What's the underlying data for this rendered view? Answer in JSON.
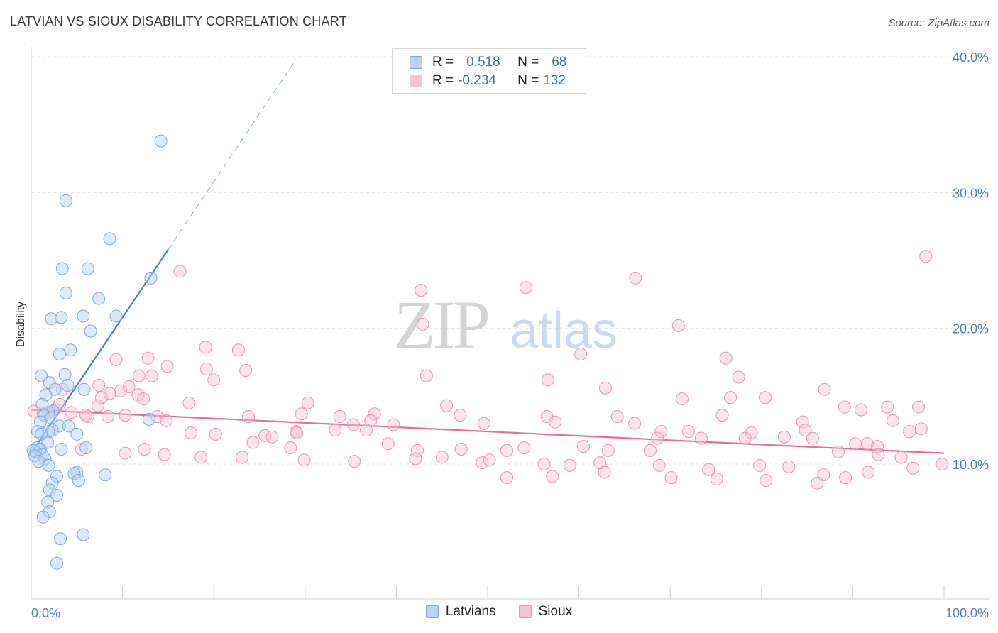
{
  "title": "LATVIAN VS SIOUX DISABILITY CORRELATION CHART",
  "source": "Source: ZipAtlas.com",
  "watermark": {
    "zip": "ZIP",
    "atlas": "atlas"
  },
  "legend": {
    "rows": [
      {
        "r_label": "R = ",
        "r_value": "0.518",
        "n_label": "N = ",
        "n_value": "68",
        "color": "#7aa7e0",
        "fill": "#b9d3f3"
      },
      {
        "r_label": "R = ",
        "r_value": "-0.234",
        "n_label": "N = ",
        "n_value": "132",
        "color": "#ee90ae",
        "fill": "#f8c4d4"
      }
    ]
  },
  "bottom_legend": [
    {
      "label": "Latvians",
      "color": "#7aa7e0",
      "fill": "#b9d3f3"
    },
    {
      "label": "Sioux",
      "color": "#ee90ae",
      "fill": "#f8c4d4"
    }
  ],
  "chart_data": {
    "type": "scatter",
    "title": "LATVIAN VS SIOUX DISABILITY CORRELATION CHART",
    "xlabel": "",
    "ylabel": "Disability",
    "xlim": [
      0,
      100
    ],
    "ylim": [
      0,
      42
    ],
    "x_tick_labels": [
      "0.0%",
      "100.0%"
    ],
    "y_ticks": [
      10,
      20,
      30,
      40
    ],
    "y_tick_labels": [
      "10.0%",
      "20.0%",
      "30.0%",
      "40.0%"
    ],
    "grid": true,
    "legend_position": "top-center",
    "series": [
      {
        "name": "Latvians",
        "color": "#3f7ed6",
        "r": 0.518,
        "n": 68,
        "trend": {
          "x0": 0.0,
          "y0": 10.8,
          "x1": 15.0,
          "y1": 25.8,
          "dash_to_x": 29.0,
          "dash_to_y": 39.8
        },
        "points": [
          [
            14.2,
            33.8
          ],
          [
            3.8,
            29.4
          ],
          [
            8.6,
            26.6
          ],
          [
            6.2,
            24.4
          ],
          [
            3.4,
            24.4
          ],
          [
            13.1,
            23.7
          ],
          [
            3.8,
            22.6
          ],
          [
            7.4,
            22.2
          ],
          [
            9.3,
            20.9
          ],
          [
            5.7,
            20.9
          ],
          [
            3.3,
            20.8
          ],
          [
            2.2,
            20.7
          ],
          [
            6.5,
            19.8
          ],
          [
            4.3,
            18.4
          ],
          [
            3.1,
            18.1
          ],
          [
            1.1,
            16.5
          ],
          [
            3.7,
            16.6
          ],
          [
            2.0,
            16.0
          ],
          [
            4.0,
            15.8
          ],
          [
            5.8,
            15.5
          ],
          [
            1.6,
            15.1
          ],
          [
            2.6,
            15.5
          ],
          [
            1.2,
            14.4
          ],
          [
            2.4,
            13.9
          ],
          [
            1.9,
            13.8
          ],
          [
            1.4,
            13.6
          ],
          [
            2.2,
            13.4
          ],
          [
            1.0,
            13.1
          ],
          [
            3.1,
            12.8
          ],
          [
            4.1,
            12.8
          ],
          [
            2.3,
            12.5
          ],
          [
            1.9,
            12.4
          ],
          [
            0.7,
            12.4
          ],
          [
            1.1,
            12.2
          ],
          [
            5.0,
            12.2
          ],
          [
            12.9,
            13.3
          ],
          [
            1.8,
            11.6
          ],
          [
            0.6,
            11.2
          ],
          [
            1.0,
            11.1
          ],
          [
            0.2,
            11.0
          ],
          [
            0.5,
            10.9
          ],
          [
            3.3,
            11.1
          ],
          [
            6.0,
            11.2
          ],
          [
            1.2,
            10.7
          ],
          [
            0.4,
            10.6
          ],
          [
            1.5,
            10.4
          ],
          [
            0.8,
            10.2
          ],
          [
            1.9,
            9.9
          ],
          [
            5.0,
            9.4
          ],
          [
            4.7,
            9.3
          ],
          [
            2.8,
            9.1
          ],
          [
            8.1,
            9.2
          ],
          [
            5.2,
            8.8
          ],
          [
            2.3,
            8.6
          ],
          [
            2.0,
            8.1
          ],
          [
            2.8,
            7.7
          ],
          [
            1.8,
            7.2
          ],
          [
            2.0,
            6.5
          ],
          [
            1.3,
            6.1
          ],
          [
            5.7,
            4.8
          ],
          [
            3.2,
            4.5
          ],
          [
            2.8,
            2.7
          ]
        ]
      },
      {
        "name": "Sioux",
        "color": "#e2709a",
        "r": -0.234,
        "n": 132,
        "trend": {
          "x0": 0.0,
          "y0": 14.0,
          "x1": 100.0,
          "y1": 10.8
        },
        "points": [
          [
            98.0,
            25.3
          ],
          [
            66.2,
            23.7
          ],
          [
            16.3,
            24.2
          ],
          [
            42.7,
            22.8
          ],
          [
            42.9,
            20.3
          ],
          [
            54.2,
            23.0
          ],
          [
            70.9,
            20.2
          ],
          [
            60.2,
            18.1
          ],
          [
            19.1,
            18.6
          ],
          [
            22.7,
            18.4
          ],
          [
            76.1,
            17.8
          ],
          [
            9.3,
            17.7
          ],
          [
            12.8,
            17.8
          ],
          [
            14.9,
            17.2
          ],
          [
            19.2,
            17.0
          ],
          [
            23.5,
            16.9
          ],
          [
            11.8,
            16.5
          ],
          [
            13.2,
            16.5
          ],
          [
            20.0,
            16.2
          ],
          [
            77.5,
            16.4
          ],
          [
            43.3,
            16.5
          ],
          [
            56.6,
            16.2
          ],
          [
            62.9,
            15.6
          ],
          [
            86.9,
            15.5
          ],
          [
            7.4,
            15.8
          ],
          [
            10.7,
            15.7
          ],
          [
            9.8,
            15.4
          ],
          [
            7.7,
            14.9
          ],
          [
            8.6,
            15.2
          ],
          [
            11.7,
            15.1
          ],
          [
            12.3,
            14.8
          ],
          [
            3.4,
            15.5
          ],
          [
            3.1,
            14.4
          ],
          [
            17.3,
            14.5
          ],
          [
            7.3,
            14.3
          ],
          [
            30.3,
            14.5
          ],
          [
            45.5,
            14.3
          ],
          [
            71.3,
            14.8
          ],
          [
            76.6,
            14.9
          ],
          [
            80.4,
            14.9
          ],
          [
            89.1,
            14.2
          ],
          [
            93.8,
            14.2
          ],
          [
            97.2,
            14.2
          ],
          [
            90.9,
            14.0
          ],
          [
            2.6,
            14.0
          ],
          [
            0.3,
            13.9
          ],
          [
            1.3,
            13.7
          ],
          [
            4.4,
            13.8
          ],
          [
            6.0,
            13.6
          ],
          [
            6.2,
            13.5
          ],
          [
            8.4,
            13.5
          ],
          [
            10.3,
            13.6
          ],
          [
            13.8,
            13.5
          ],
          [
            23.8,
            13.5
          ],
          [
            29.6,
            13.7
          ],
          [
            33.8,
            13.5
          ],
          [
            37.6,
            13.7
          ],
          [
            47.0,
            13.6
          ],
          [
            56.5,
            13.5
          ],
          [
            64.2,
            13.5
          ],
          [
            75.7,
            13.6
          ],
          [
            84.5,
            13.1
          ],
          [
            94.4,
            13.2
          ],
          [
            97.5,
            12.6
          ],
          [
            14.8,
            13.2
          ],
          [
            17.5,
            12.3
          ],
          [
            20.2,
            12.2
          ],
          [
            29.0,
            12.4
          ],
          [
            29.1,
            12.3
          ],
          [
            35.3,
            12.9
          ],
          [
            37.2,
            13.2
          ],
          [
            36.7,
            12.5
          ],
          [
            39.7,
            12.9
          ],
          [
            49.6,
            13.0
          ],
          [
            57.4,
            13.1
          ],
          [
            66.1,
            13.0
          ],
          [
            69.0,
            12.4
          ],
          [
            72.0,
            12.4
          ],
          [
            78.9,
            12.3
          ],
          [
            82.5,
            12.0
          ],
          [
            85.6,
            11.9
          ],
          [
            90.3,
            11.5
          ],
          [
            91.6,
            11.5
          ],
          [
            96.2,
            12.4
          ],
          [
            33.3,
            12.5
          ],
          [
            25.6,
            12.1
          ],
          [
            26.4,
            12.0
          ],
          [
            68.6,
            11.9
          ],
          [
            73.4,
            11.9
          ],
          [
            78.2,
            11.9
          ],
          [
            84.8,
            12.5
          ],
          [
            92.7,
            11.3
          ],
          [
            24.3,
            11.6
          ],
          [
            28.4,
            11.2
          ],
          [
            39.1,
            11.5
          ],
          [
            42.3,
            11.0
          ],
          [
            47.1,
            11.1
          ],
          [
            52.1,
            11.0
          ],
          [
            54.0,
            11.2
          ],
          [
            60.5,
            11.3
          ],
          [
            63.2,
            11.0
          ],
          [
            67.8,
            11.0
          ],
          [
            88.4,
            10.9
          ],
          [
            92.8,
            10.7
          ],
          [
            95.3,
            10.5
          ],
          [
            99.8,
            10.0
          ],
          [
            5.5,
            11.1
          ],
          [
            10.3,
            10.8
          ],
          [
            12.4,
            11.1
          ],
          [
            14.6,
            10.7
          ],
          [
            18.6,
            10.5
          ],
          [
            23.1,
            10.5
          ],
          [
            29.9,
            10.3
          ],
          [
            35.4,
            10.2
          ],
          [
            45.0,
            10.5
          ],
          [
            49.4,
            10.1
          ],
          [
            50.2,
            10.3
          ],
          [
            56.2,
            10.0
          ],
          [
            59.0,
            9.9
          ],
          [
            62.3,
            10.1
          ],
          [
            68.8,
            9.9
          ],
          [
            74.2,
            9.6
          ],
          [
            79.8,
            9.9
          ],
          [
            83.0,
            9.8
          ],
          [
            86.8,
            9.2
          ],
          [
            89.2,
            9.0
          ],
          [
            91.7,
            9.4
          ],
          [
            96.6,
            9.7
          ],
          [
            42.1,
            10.4
          ],
          [
            52.1,
            9.0
          ],
          [
            57.1,
            9.1
          ],
          [
            62.8,
            9.4
          ],
          [
            70.1,
            9.0
          ],
          [
            75.1,
            8.9
          ],
          [
            80.5,
            8.8
          ],
          [
            86.1,
            8.6
          ]
        ]
      }
    ]
  }
}
